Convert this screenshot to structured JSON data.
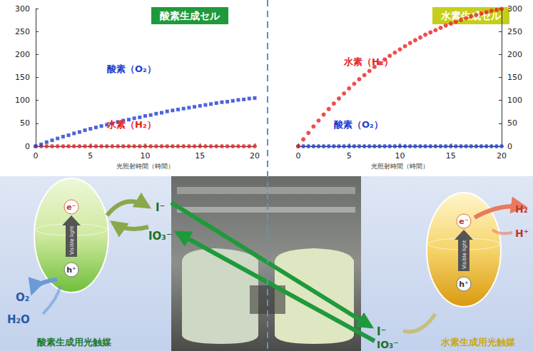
{
  "chart_data": [
    {
      "type": "scatter",
      "title": "酸素生成セル",
      "x_label": "光照射時間（時間）",
      "x": [
        0,
        0.5,
        1,
        1.5,
        2,
        2.5,
        3,
        3.5,
        4,
        4.5,
        5,
        5.5,
        6,
        6.5,
        7,
        7.5,
        8,
        8.5,
        9,
        9.5,
        10,
        10.5,
        11,
        11.5,
        12,
        12.5,
        13,
        13.5,
        14,
        14.5,
        15,
        15.5,
        16,
        16.5,
        17,
        17.5,
        18,
        18.5,
        19,
        19.5,
        20
      ],
      "xlim": [
        0,
        20
      ],
      "xticks": [
        0,
        5,
        10,
        15,
        20
      ],
      "ylim": [
        0,
        300
      ],
      "yticks": [
        0,
        50,
        100,
        150,
        200,
        250,
        300
      ],
      "grid": false,
      "series": [
        {
          "name": "酸素（O₂）",
          "color": "#1f3fd0",
          "marker": "square",
          "values": [
            0,
            4,
            9,
            13,
            17,
            21,
            24,
            28,
            31,
            35,
            38,
            41,
            44,
            47,
            50,
            53,
            56,
            58,
            61,
            63,
            66,
            68,
            71,
            73,
            76,
            78,
            80,
            82,
            84,
            86,
            88,
            90,
            92,
            94,
            96,
            97,
            99,
            101,
            102,
            104,
            105
          ]
        },
        {
          "name": "水素（H₂）",
          "color": "#e8231f",
          "marker": "circle",
          "values": [
            0,
            0,
            0,
            0,
            0,
            0,
            0,
            0,
            0,
            0,
            0,
            0,
            0,
            0,
            0,
            0,
            0,
            0,
            0,
            0,
            0,
            0,
            0,
            0,
            0,
            0,
            0,
            0,
            0,
            0,
            0,
            0,
            0,
            0,
            0,
            0,
            0,
            0,
            0,
            0,
            0
          ]
        }
      ]
    },
    {
      "type": "scatter",
      "title": "水素生成セル",
      "x_label": "光照射時間（時間）",
      "x": [
        0,
        0.5,
        1,
        1.5,
        2,
        2.5,
        3,
        3.5,
        4,
        4.5,
        5,
        5.5,
        6,
        6.5,
        7,
        7.5,
        8,
        8.5,
        9,
        9.5,
        10,
        10.5,
        11,
        11.5,
        12,
        12.5,
        13,
        13.5,
        14,
        14.5,
        15,
        15.5,
        16,
        16.5,
        17,
        17.5,
        18,
        18.5,
        19,
        19.5,
        20
      ],
      "xlim": [
        0,
        20
      ],
      "xticks": [
        0,
        5,
        10,
        15,
        20
      ],
      "ylim": [
        0,
        300
      ],
      "yticks": [
        0,
        50,
        100,
        150,
        200,
        250,
        300
      ],
      "grid": false,
      "series": [
        {
          "name": "水素（H₂）",
          "color": "#e8231f",
          "marker": "circle",
          "values": [
            0,
            15,
            29,
            43,
            56,
            69,
            81,
            93,
            104,
            115,
            126,
            136,
            146,
            155,
            164,
            173,
            181,
            189,
            197,
            204,
            211,
            218,
            225,
            231,
            237,
            243,
            248,
            253,
            258,
            263,
            267,
            271,
            275,
            279,
            283,
            286,
            289,
            292,
            295,
            297,
            299
          ]
        },
        {
          "name": "酸素（O₂）",
          "color": "#1f3fd0",
          "marker": "circle",
          "values": [
            0,
            0,
            0,
            0,
            0,
            0,
            0,
            0,
            0,
            0,
            0,
            0,
            0,
            0,
            0,
            0,
            0,
            0,
            0,
            0,
            0,
            0,
            0,
            0,
            0,
            0,
            0,
            0,
            0,
            0,
            0,
            0,
            0,
            0,
            0,
            0,
            0,
            0,
            0,
            0,
            0
          ]
        }
      ]
    }
  ],
  "diagram": {
    "oxygen_panel": {
      "caption": "酸素生成用光触媒",
      "electron": "e⁻",
      "hole": "h⁺",
      "light": "Visible light",
      "reduced": "I⁻",
      "oxidized": "IO₃⁻",
      "product": "O₂",
      "reactant": "H₂O"
    },
    "hydrogen_panel": {
      "caption": "水素生成用光触媒",
      "electron": "e⁻",
      "hole": "h⁺",
      "light": "Visible light",
      "reduced": "I⁻",
      "oxidized": "IO₃⁻",
      "product": "H₂",
      "reactant": "H⁺"
    }
  }
}
